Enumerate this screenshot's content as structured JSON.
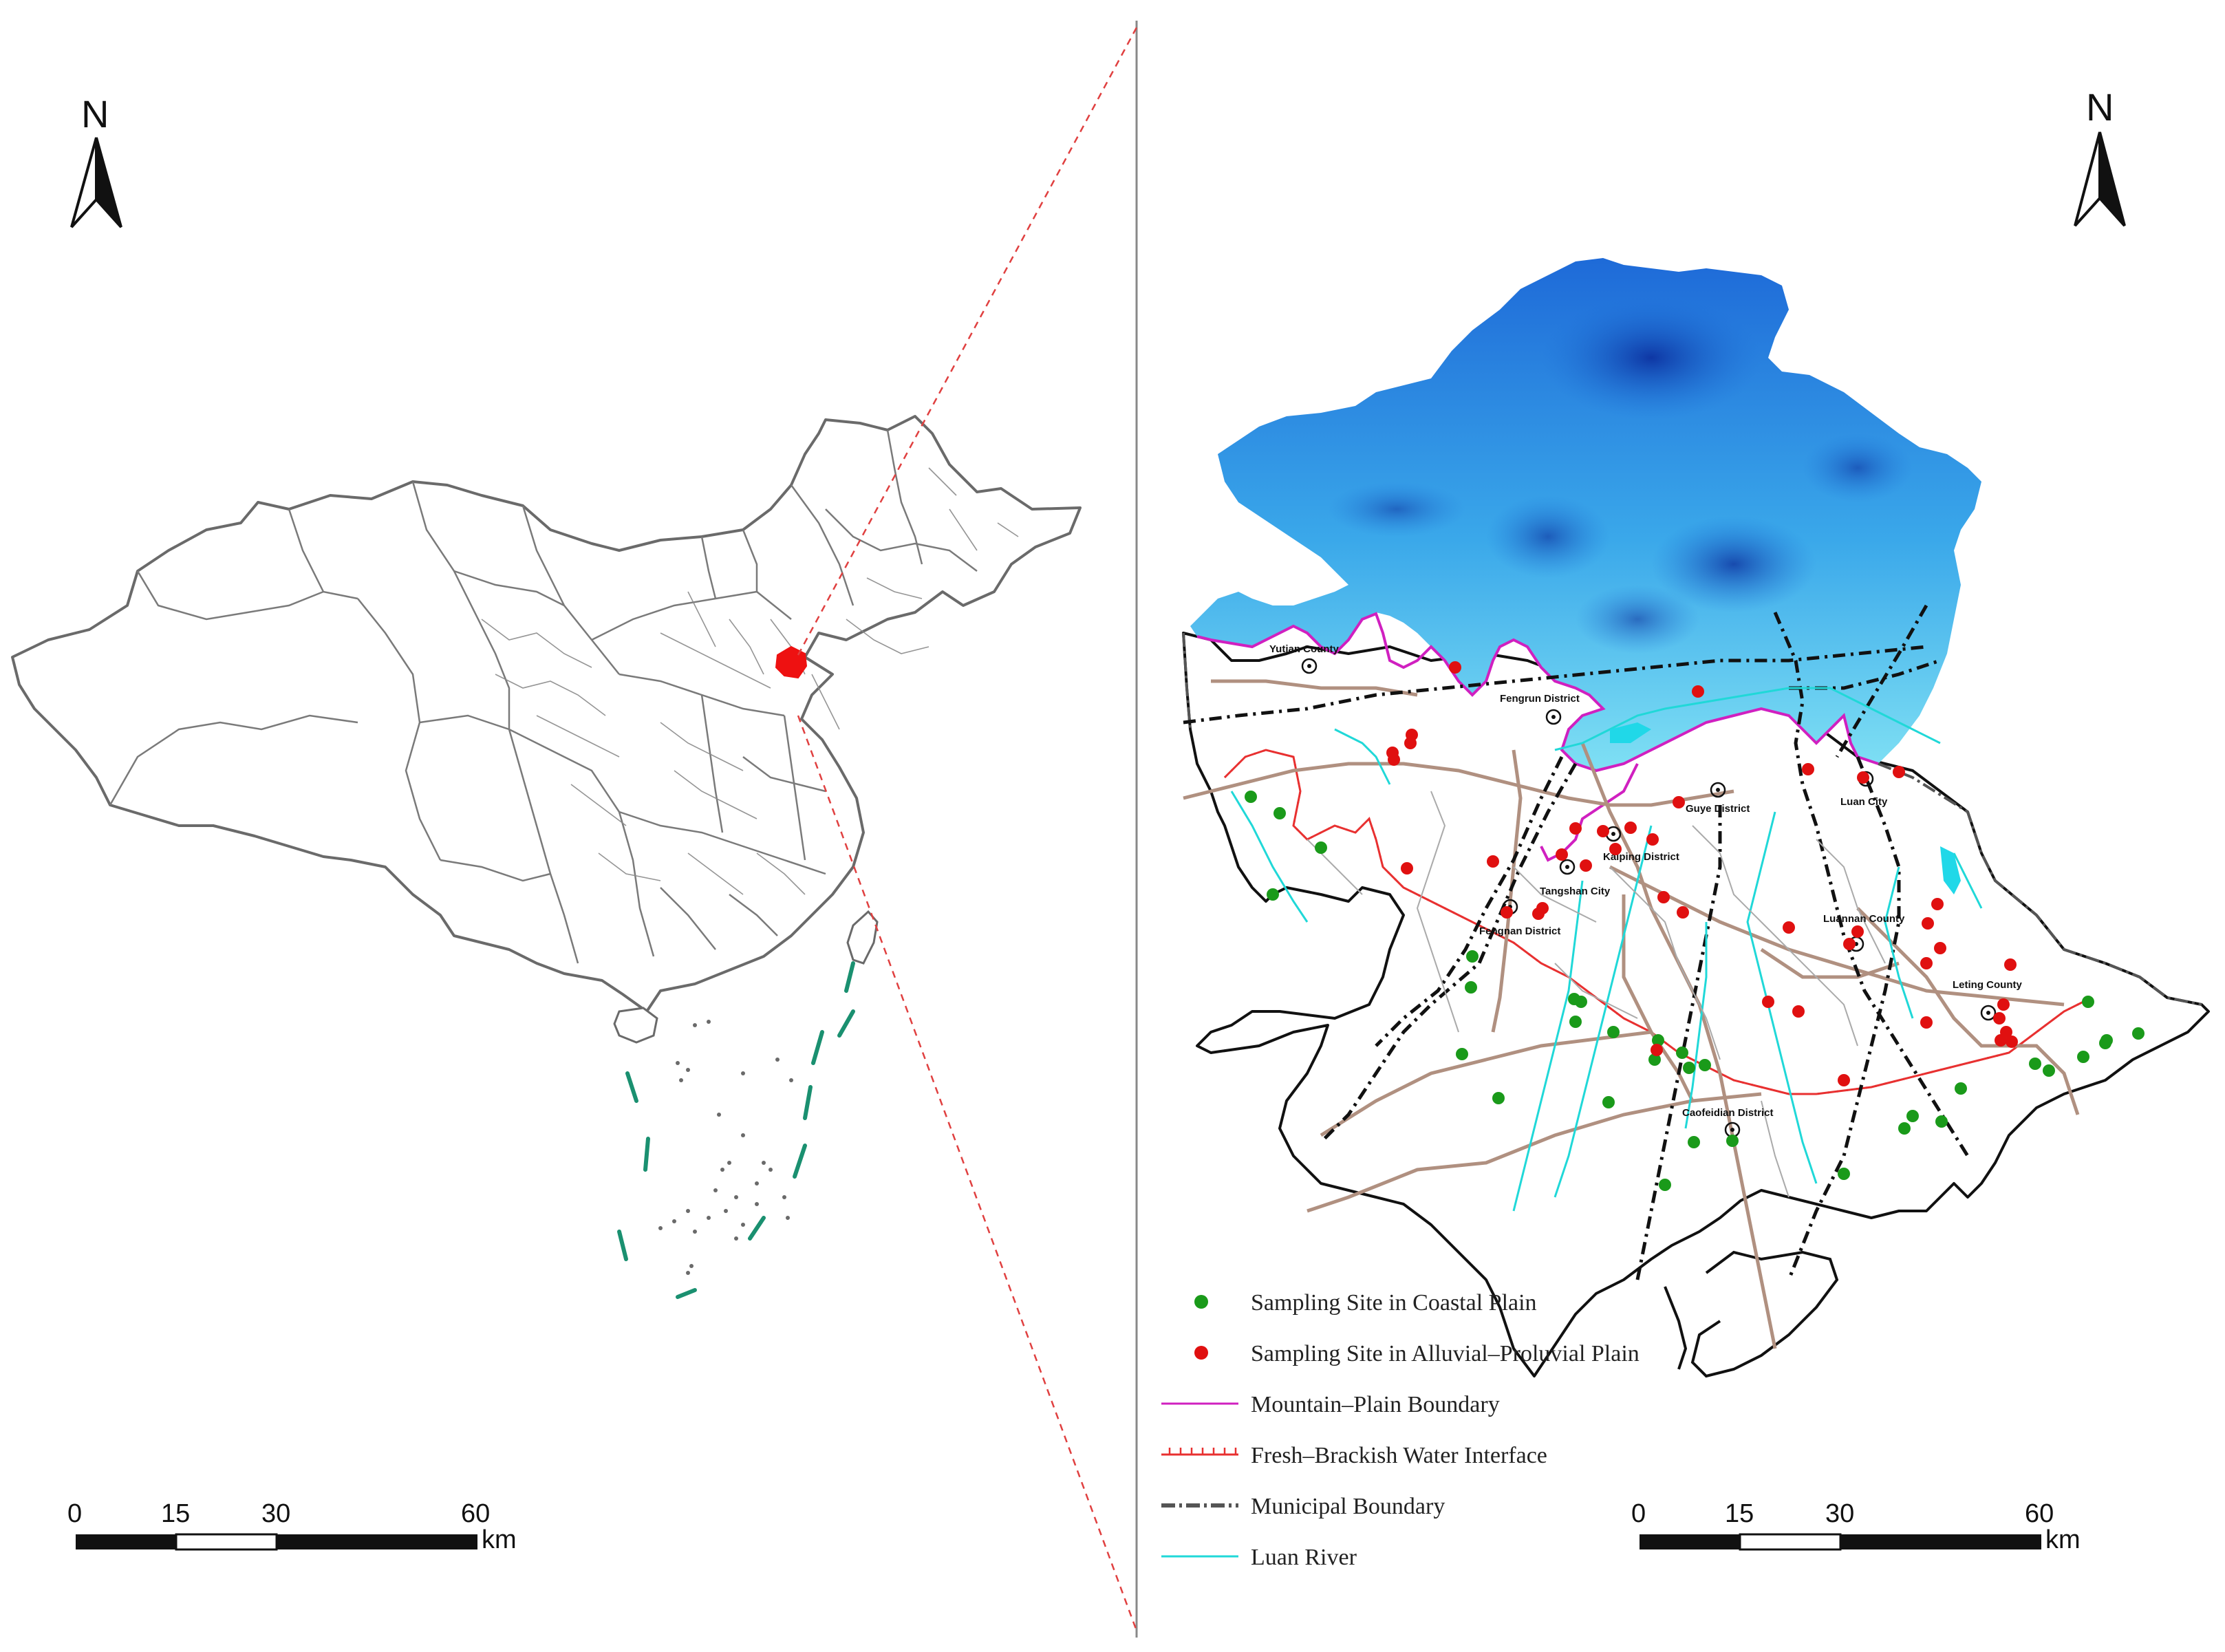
{
  "left_panel": {
    "north": "N",
    "scale": {
      "ticks": [
        "0",
        "15",
        "30",
        "60"
      ],
      "unit": "km"
    }
  },
  "right_panel": {
    "north": "N",
    "scale": {
      "ticks": [
        "0",
        "15",
        "30",
        "60"
      ],
      "unit": "km"
    },
    "places": [
      {
        "id": "yutian",
        "label": "Yutian County"
      },
      {
        "id": "fengrun",
        "label": "Fengrun District"
      },
      {
        "id": "guye",
        "label": "Guye District"
      },
      {
        "id": "luan",
        "label": "Luan City"
      },
      {
        "id": "kaiping",
        "label": "Kaiping District"
      },
      {
        "id": "tangshan",
        "label": "Tangshan City"
      },
      {
        "id": "luannan",
        "label": "Luannan County"
      },
      {
        "id": "fengnan",
        "label": "Fengnan District"
      },
      {
        "id": "leting",
        "label": "Leting County"
      },
      {
        "id": "caofeidian",
        "label": "Caofeidian District"
      }
    ],
    "legend": [
      {
        "id": "coastal",
        "label": "Sampling Site in Coastal Plain",
        "symbol": "dot",
        "color": "#1a9a1a"
      },
      {
        "id": "alluvial",
        "label": "Sampling Site in Alluvial–Proluvial Plain",
        "symbol": "dot",
        "color": "#e01010"
      },
      {
        "id": "mountain",
        "label": "Mountain–Plain Boundary",
        "symbol": "line",
        "color": "#d020c0"
      },
      {
        "id": "fresh",
        "label": "Fresh–Brackish Water Interface",
        "symbol": "tick-line",
        "color": "#e83030"
      },
      {
        "id": "municipal",
        "label": "Municipal Boundary",
        "symbol": "dash-line",
        "color": "#555555"
      },
      {
        "id": "river",
        "label": "Luan  River",
        "symbol": "line",
        "color": "#20d8d8"
      }
    ]
  }
}
